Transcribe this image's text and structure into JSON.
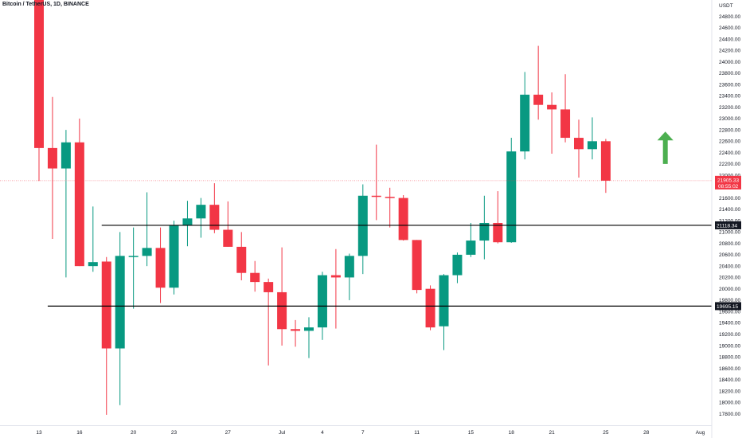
{
  "header": {
    "symbol_title": "Bitcoin / TetherUS, 1D, BINANCE"
  },
  "chart_data": {
    "type": "candlestick",
    "title": "Bitcoin / TetherUS, 1D, BINANCE",
    "currency_label": "USDT",
    "ylim": [
      17800,
      24800
    ],
    "y_ticks": [
      17800,
      18000,
      18200,
      18400,
      18600,
      18800,
      19000,
      19200,
      19400,
      19600,
      19800,
      20000,
      20200,
      20400,
      20600,
      20800,
      21000,
      21200,
      21400,
      21600,
      21800,
      22000,
      22200,
      22400,
      22600,
      22800,
      23000,
      23200,
      23400,
      23600,
      23800,
      24000,
      24200,
      24400,
      24600,
      24800
    ],
    "x_ticks": [
      {
        "label": "13",
        "day": 0
      },
      {
        "label": "16",
        "day": 3
      },
      {
        "label": "20",
        "day": 7
      },
      {
        "label": "23",
        "day": 10
      },
      {
        "label": "27",
        "day": 14
      },
      {
        "label": "Jul",
        "day": 18
      },
      {
        "label": "4",
        "day": 21
      },
      {
        "label": "7",
        "day": 24
      },
      {
        "label": "11",
        "day": 28
      },
      {
        "label": "15",
        "day": 32
      },
      {
        "label": "18",
        "day": 35
      },
      {
        "label": "21",
        "day": 38
      },
      {
        "label": "25",
        "day": 42
      },
      {
        "label": "28",
        "day": 45
      },
      {
        "label": "Aug",
        "day": 49
      }
    ],
    "candles": [
      {
        "day": 0,
        "o": 26600,
        "h": 26900,
        "l": 21900,
        "c": 22480
      },
      {
        "day": 1,
        "o": 22480,
        "h": 23380,
        "l": 20880,
        "c": 22120
      },
      {
        "day": 2,
        "o": 22120,
        "h": 22800,
        "l": 20200,
        "c": 22580
      },
      {
        "day": 3,
        "o": 22580,
        "h": 23000,
        "l": 20400,
        "c": 20400
      },
      {
        "day": 4,
        "o": 20400,
        "h": 21450,
        "l": 20300,
        "c": 20470
      },
      {
        "day": 5,
        "o": 20480,
        "h": 20560,
        "l": 17780,
        "c": 18950
      },
      {
        "day": 6,
        "o": 18950,
        "h": 21000,
        "l": 17950,
        "c": 20580
      },
      {
        "day": 7,
        "o": 20580,
        "h": 21080,
        "l": 19650,
        "c": 20580
      },
      {
        "day": 8,
        "o": 20580,
        "h": 21700,
        "l": 20400,
        "c": 20720
      },
      {
        "day": 9,
        "o": 20720,
        "h": 21080,
        "l": 19750,
        "c": 20020
      },
      {
        "day": 10,
        "o": 20020,
        "h": 21200,
        "l": 19900,
        "c": 21120
      },
      {
        "day": 11,
        "o": 21120,
        "h": 21550,
        "l": 20750,
        "c": 21240
      },
      {
        "day": 12,
        "o": 21240,
        "h": 21600,
        "l": 20900,
        "c": 21480
      },
      {
        "day": 13,
        "o": 21480,
        "h": 21860,
        "l": 20980,
        "c": 21040
      },
      {
        "day": 14,
        "o": 21040,
        "h": 21540,
        "l": 20740,
        "c": 20740
      },
      {
        "day": 15,
        "o": 20740,
        "h": 21000,
        "l": 20150,
        "c": 20280
      },
      {
        "day": 16,
        "o": 20280,
        "h": 20490,
        "l": 19950,
        "c": 20120
      },
      {
        "day": 17,
        "o": 20120,
        "h": 20180,
        "l": 18650,
        "c": 19940
      },
      {
        "day": 18,
        "o": 19940,
        "h": 20730,
        "l": 19000,
        "c": 19290
      },
      {
        "day": 19,
        "o": 19290,
        "h": 19450,
        "l": 18980,
        "c": 19260
      },
      {
        "day": 20,
        "o": 19260,
        "h": 19500,
        "l": 18780,
        "c": 19320
      },
      {
        "day": 21,
        "o": 19320,
        "h": 20300,
        "l": 19100,
        "c": 20240
      },
      {
        "day": 22,
        "o": 20240,
        "h": 20700,
        "l": 19300,
        "c": 20200
      },
      {
        "day": 23,
        "o": 20200,
        "h": 20620,
        "l": 19800,
        "c": 20580
      },
      {
        "day": 24,
        "o": 20580,
        "h": 21840,
        "l": 20260,
        "c": 21640
      },
      {
        "day": 25,
        "o": 21640,
        "h": 22540,
        "l": 21210,
        "c": 21620
      },
      {
        "day": 26,
        "o": 21620,
        "h": 21780,
        "l": 21080,
        "c": 21600
      },
      {
        "day": 27,
        "o": 21600,
        "h": 21650,
        "l": 20850,
        "c": 20860
      },
      {
        "day": 28,
        "o": 20860,
        "h": 20860,
        "l": 19920,
        "c": 19980
      },
      {
        "day": 29,
        "o": 20000,
        "h": 20060,
        "l": 19270,
        "c": 19320
      },
      {
        "day": 30,
        "o": 19340,
        "h": 20260,
        "l": 18920,
        "c": 20240
      },
      {
        "day": 31,
        "o": 20240,
        "h": 20640,
        "l": 20100,
        "c": 20600
      },
      {
        "day": 32,
        "o": 20600,
        "h": 21160,
        "l": 20560,
        "c": 20850
      },
      {
        "day": 33,
        "o": 20850,
        "h": 21640,
        "l": 20520,
        "c": 21160
      },
      {
        "day": 34,
        "o": 21160,
        "h": 21720,
        "l": 20800,
        "c": 20820
      },
      {
        "day": 35,
        "o": 20820,
        "h": 22660,
        "l": 20810,
        "c": 22420
      },
      {
        "day": 36,
        "o": 22420,
        "h": 23820,
        "l": 22280,
        "c": 23420
      },
      {
        "day": 37,
        "o": 23420,
        "h": 24280,
        "l": 22980,
        "c": 23240
      },
      {
        "day": 38,
        "o": 23240,
        "h": 23460,
        "l": 22380,
        "c": 23160
      },
      {
        "day": 39,
        "o": 23160,
        "h": 23780,
        "l": 22580,
        "c": 22660
      },
      {
        "day": 40,
        "o": 22660,
        "h": 22980,
        "l": 21960,
        "c": 22460
      },
      {
        "day": 41,
        "o": 22460,
        "h": 23020,
        "l": 22280,
        "c": 22600
      },
      {
        "day": 42,
        "o": 22600,
        "h": 22640,
        "l": 21690,
        "c": 21905
      }
    ],
    "horizontal_lines": [
      {
        "price": 21118.34,
        "label": "21118.34",
        "from_day": 5
      },
      {
        "price": 19695.15,
        "label": "19695.15",
        "from_day": 1
      }
    ],
    "current_price": {
      "value": 21905.33,
      "label": "21905.33",
      "countdown": "08:55:02"
    },
    "arrow_annotation": {
      "direction": "up",
      "day": 46,
      "from": 22200,
      "to": 22770,
      "color": "#4caf50"
    },
    "colors": {
      "up": "#089981",
      "down": "#f23645",
      "price_line": "#f23645",
      "level_line": "#000000",
      "axis_text": "#131722"
    },
    "grid": false
  }
}
